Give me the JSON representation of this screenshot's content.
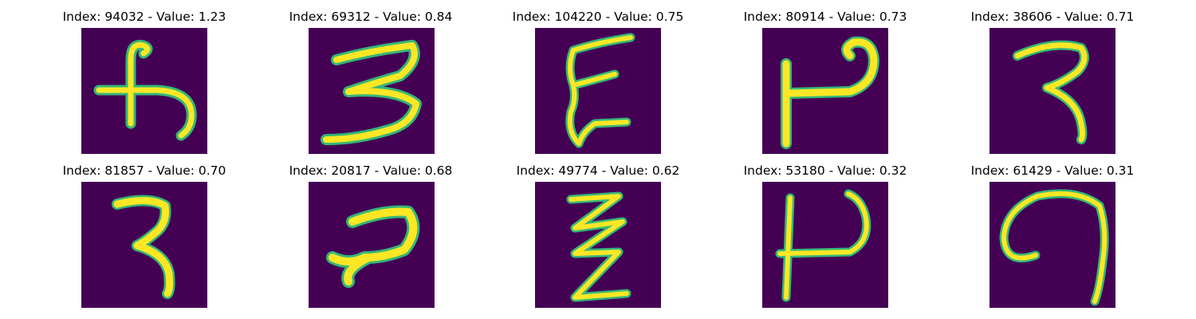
{
  "colors": {
    "background": "#440154",
    "glyph_edge": "#35b779",
    "glyph_core": "#fde725"
  },
  "panels": [
    {
      "title": "Index: 94032 - Value: 1.23"
    },
    {
      "title": "Index: 69312 - Value: 0.84"
    },
    {
      "title": "Index: 104220 - Value: 0.75"
    },
    {
      "title": "Index: 80914 - Value: 0.73"
    },
    {
      "title": "Index: 38606 - Value: 0.71"
    },
    {
      "title": "Index: 81857 - Value: 0.70"
    },
    {
      "title": "Index: 20817 - Value: 0.68"
    },
    {
      "title": "Index: 49774 - Value: 0.62"
    },
    {
      "title": "Index: 53180 - Value: 0.32"
    },
    {
      "title": "Index: 61429 - Value: 0.31"
    }
  ]
}
